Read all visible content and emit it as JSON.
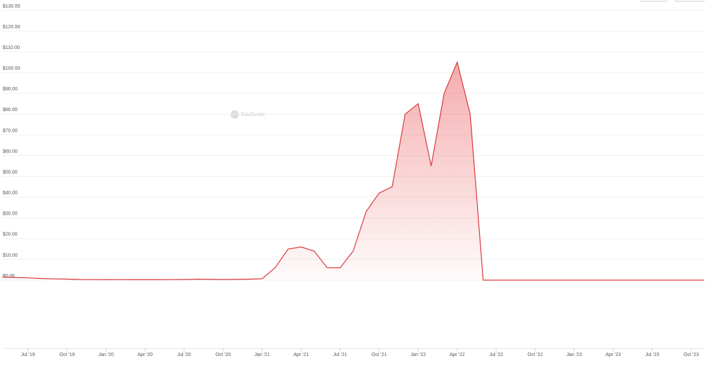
{
  "chart_data": {
    "type": "line",
    "area": true,
    "watermark": "CoinGecko",
    "color": "#d9373a",
    "grid": true,
    "x": [
      "2019-05",
      "2019-06",
      "2019-07",
      "2019-08",
      "2019-09",
      "2019-10",
      "2019-11",
      "2019-12",
      "2020-01",
      "2020-02",
      "2020-03",
      "2020-04",
      "2020-05",
      "2020-06",
      "2020-07",
      "2020-08",
      "2020-09",
      "2020-10",
      "2020-11",
      "2020-12",
      "2021-01",
      "2021-02",
      "2021-03",
      "2021-04",
      "2021-05",
      "2021-06",
      "2021-07",
      "2021-08",
      "2021-09",
      "2021-10",
      "2021-11",
      "2021-12",
      "2022-01",
      "2022-02",
      "2022-03",
      "2022-04",
      "2022-05",
      "2022-06",
      "2022-07",
      "2022-08",
      "2022-09",
      "2022-10",
      "2022-11",
      "2022-12",
      "2023-01",
      "2023-02",
      "2023-03",
      "2023-04",
      "2023-05",
      "2023-06",
      "2023-07",
      "2023-08",
      "2023-09",
      "2023-10",
      "2023-11"
    ],
    "values": [
      1.5,
      1.3,
      1.1,
      0.8,
      0.6,
      0.5,
      0.3,
      0.25,
      0.2,
      0.25,
      0.2,
      0.2,
      0.2,
      0.25,
      0.3,
      0.45,
      0.35,
      0.3,
      0.35,
      0.45,
      0.7,
      6,
      15,
      16,
      14,
      6,
      6,
      14,
      33,
      42,
      45,
      80,
      85,
      55,
      90,
      105,
      80,
      0,
      0,
      0,
      0,
      0,
      0,
      0,
      0,
      0,
      0,
      0,
      0,
      0,
      0,
      0,
      0,
      0,
      0
    ],
    "xlim": [
      "2019-05",
      "2023-11"
    ],
    "xticks": [
      {
        "value": "2019-07",
        "label": "Jul '19"
      },
      {
        "value": "2019-10",
        "label": "Oct '19"
      },
      {
        "value": "2020-01",
        "label": "Jan '20"
      },
      {
        "value": "2020-04",
        "label": "Apr '20"
      },
      {
        "value": "2020-07",
        "label": "Jul '20"
      },
      {
        "value": "2020-10",
        "label": "Oct '20"
      },
      {
        "value": "2021-01",
        "label": "Jan '21"
      },
      {
        "value": "2021-04",
        "label": "Apr '21"
      },
      {
        "value": "2021-07",
        "label": "Jul '21"
      },
      {
        "value": "2021-10",
        "label": "Oct '21"
      },
      {
        "value": "2022-01",
        "label": "Jan '22"
      },
      {
        "value": "2022-04",
        "label": "Apr '22"
      },
      {
        "value": "2022-07",
        "label": "Jul '22"
      },
      {
        "value": "2022-10",
        "label": "Oct '22"
      },
      {
        "value": "2023-01",
        "label": "Jan '23"
      },
      {
        "value": "2023-04",
        "label": "Apr '23"
      },
      {
        "value": "2023-07",
        "label": "Jul '23"
      },
      {
        "value": "2023-10",
        "label": "Oct '23"
      }
    ],
    "ylim": [
      0,
      130
    ],
    "yticks": [
      {
        "value": 0,
        "label": "$0.00"
      },
      {
        "value": 10,
        "label": "$10.00"
      },
      {
        "value": 20,
        "label": "$20.00"
      },
      {
        "value": 30,
        "label": "$30.00"
      },
      {
        "value": 40,
        "label": "$40.00"
      },
      {
        "value": 50,
        "label": "$50.00"
      },
      {
        "value": 60,
        "label": "$60.00"
      },
      {
        "value": 70,
        "label": "$70.00"
      },
      {
        "value": 80,
        "label": "$80.00"
      },
      {
        "value": 90,
        "label": "$90.00"
      },
      {
        "value": 100,
        "label": "$100.00"
      },
      {
        "value": 110,
        "label": "$110.00"
      },
      {
        "value": 120,
        "label": "$120.00"
      },
      {
        "value": 130,
        "label": "$130.00"
      }
    ]
  }
}
